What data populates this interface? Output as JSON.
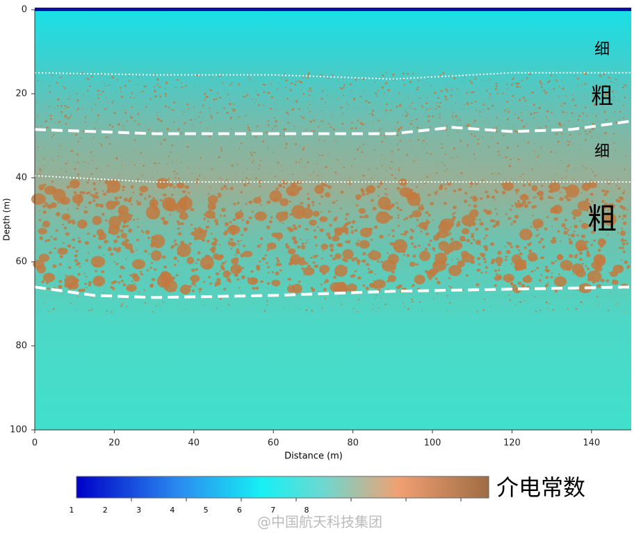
{
  "chart_data": {
    "type": "profile",
    "xlabel": "Distance (m)",
    "ylabel": "Depth (m)",
    "xlim": [
      0,
      150
    ],
    "xticks": [
      0,
      20,
      40,
      60,
      80,
      100,
      120,
      140
    ],
    "ylim": [
      0,
      100
    ],
    "yticks": [
      0,
      20,
      40,
      60,
      80,
      100
    ],
    "y_inverted": true,
    "boundaries": [
      {
        "style": "dotted",
        "x": [
          0,
          30,
          60,
          90,
          120,
          150
        ],
        "depth": [
          15,
          15.5,
          15.5,
          16.5,
          15,
          15
        ]
      },
      {
        "style": "dashed",
        "x": [
          0,
          30,
          60,
          90,
          105,
          120,
          135,
          150
        ],
        "depth": [
          28.5,
          29.5,
          29.5,
          29.5,
          28,
          29,
          28.5,
          26.5
        ]
      },
      {
        "style": "dotted",
        "x": [
          0,
          30,
          60,
          90,
          120,
          150
        ],
        "depth": [
          39.5,
          41,
          41,
          41,
          41,
          41
        ]
      },
      {
        "style": "dashed",
        "x": [
          0,
          15,
          30,
          60,
          90,
          120,
          150
        ],
        "depth": [
          66,
          68,
          68.5,
          68,
          67,
          66.5,
          66
        ]
      }
    ],
    "annotations": [
      "细",
      "粗",
      "细",
      "粗"
    ],
    "colorbar": {
      "label": "介电常数",
      "ticks": [
        1,
        2,
        3,
        4,
        5,
        6,
        7,
        8
      ]
    },
    "watermark": "@中国航天科技集团"
  }
}
